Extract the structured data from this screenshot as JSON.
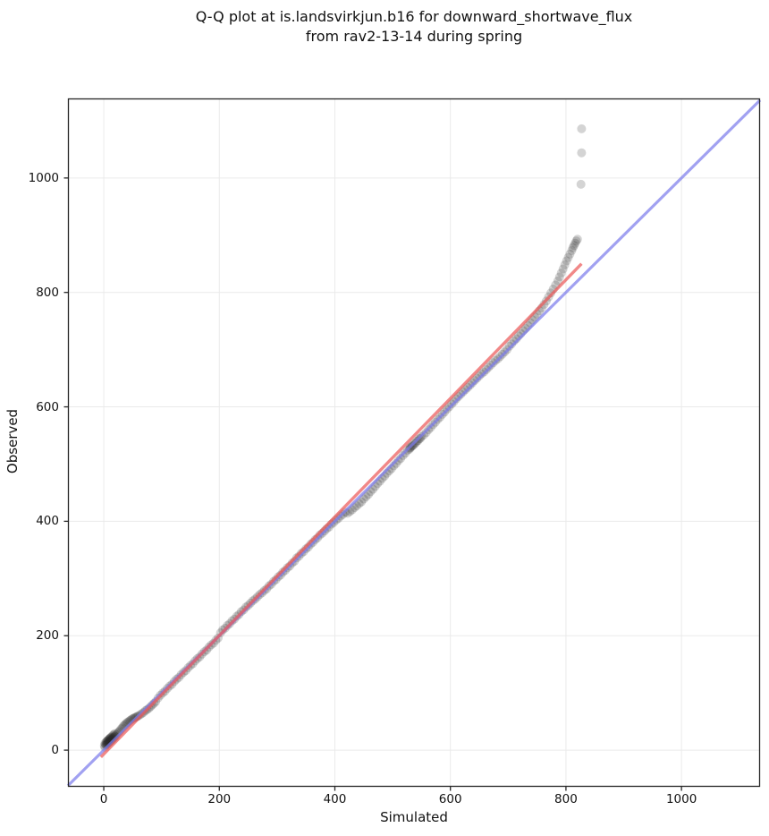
{
  "title": {
    "line1": "Q-Q plot at is.landsvirkjun.b16 for downward_shortwave_flux",
    "line2": "from rav2-13-14 during spring"
  },
  "chart_data": {
    "type": "scatter",
    "title": "Q-Q plot at is.landsvirkjun.b16 for downward_shortwave_flux from rav2-13-14 during spring",
    "xlabel": "Simulated",
    "ylabel": "Observed",
    "xlim": [
      -62,
      1136
    ],
    "ylim": [
      -64,
      1139
    ],
    "xticks": [
      0,
      200,
      400,
      600,
      800,
      1000
    ],
    "yticks": [
      0,
      200,
      400,
      600,
      800,
      1000
    ],
    "grid": true,
    "legend": "none",
    "colors": {
      "grid": "#eaeaea",
      "spine": "#262626",
      "identity_line": "rgba(125,125,235,0.72)",
      "fit_line": "rgba(235,90,90,0.72)",
      "point_fill": "#262626"
    },
    "identity_line": {
      "x": [
        -62,
        1136
      ],
      "y": [
        -62,
        1136
      ]
    },
    "fit_line": {
      "x": [
        -5,
        827
      ],
      "y": [
        -12,
        850
      ]
    },
    "points_style": {
      "radius": 5,
      "opacity": 0.2
    },
    "points": [
      [
        1,
        8
      ],
      [
        2,
        5
      ],
      [
        2,
        12
      ],
      [
        3,
        10
      ],
      [
        4,
        9
      ],
      [
        4,
        14
      ],
      [
        5,
        11
      ],
      [
        5,
        15
      ],
      [
        6,
        10
      ],
      [
        6,
        16
      ],
      [
        7,
        13
      ],
      [
        7,
        17
      ],
      [
        8,
        12
      ],
      [
        8,
        18
      ],
      [
        9,
        15
      ],
      [
        9,
        19
      ],
      [
        10,
        14
      ],
      [
        10,
        20
      ],
      [
        11,
        17
      ],
      [
        11,
        21
      ],
      [
        12,
        16
      ],
      [
        12,
        22
      ],
      [
        13,
        19
      ],
      [
        13,
        23
      ],
      [
        14,
        18
      ],
      [
        15,
        21
      ],
      [
        15,
        25
      ],
      [
        16,
        20
      ],
      [
        17,
        23
      ],
      [
        17,
        27
      ],
      [
        18,
        22
      ],
      [
        19,
        25
      ],
      [
        19,
        29
      ],
      [
        20,
        24
      ],
      [
        22,
        27
      ],
      [
        24,
        30
      ],
      [
        26,
        32
      ],
      [
        28,
        34
      ],
      [
        30,
        37
      ],
      [
        32,
        39
      ],
      [
        34,
        42
      ],
      [
        36,
        44
      ],
      [
        38,
        46
      ],
      [
        40,
        48
      ],
      [
        42,
        49
      ],
      [
        44,
        51
      ],
      [
        46,
        52
      ],
      [
        48,
        54
      ],
      [
        50,
        55
      ],
      [
        52,
        56
      ],
      [
        54,
        57
      ],
      [
        56,
        58
      ],
      [
        58,
        59
      ],
      [
        60,
        60
      ],
      [
        63,
        62
      ],
      [
        66,
        64
      ],
      [
        69,
        66
      ],
      [
        72,
        69
      ],
      [
        75,
        71
      ],
      [
        78,
        73
      ],
      [
        81,
        76
      ],
      [
        84,
        79
      ],
      [
        87,
        82
      ],
      [
        90,
        85
      ],
      [
        94,
        91
      ],
      [
        98,
        96
      ],
      [
        102,
        100
      ],
      [
        106,
        103
      ],
      [
        110,
        108
      ],
      [
        114,
        112
      ],
      [
        118,
        115
      ],
      [
        122,
        120
      ],
      [
        126,
        124
      ],
      [
        130,
        127
      ],
      [
        134,
        132
      ],
      [
        138,
        136
      ],
      [
        142,
        139
      ],
      [
        146,
        144
      ],
      [
        150,
        148
      ],
      [
        154,
        151
      ],
      [
        158,
        156
      ],
      [
        162,
        160
      ],
      [
        166,
        163
      ],
      [
        170,
        168
      ],
      [
        174,
        172
      ],
      [
        178,
        175
      ],
      [
        182,
        180
      ],
      [
        186,
        184
      ],
      [
        190,
        187
      ],
      [
        194,
        192
      ],
      [
        198,
        196
      ],
      [
        202,
        205
      ],
      [
        206,
        210
      ],
      [
        210,
        213
      ],
      [
        214,
        218
      ],
      [
        218,
        221
      ],
      [
        222,
        226
      ],
      [
        226,
        229
      ],
      [
        230,
        234
      ],
      [
        234,
        237
      ],
      [
        238,
        242
      ],
      [
        242,
        245
      ],
      [
        246,
        250
      ],
      [
        250,
        253
      ],
      [
        254,
        257
      ],
      [
        258,
        261
      ],
      [
        262,
        264
      ],
      [
        266,
        268
      ],
      [
        270,
        272
      ],
      [
        274,
        275
      ],
      [
        278,
        279
      ],
      [
        282,
        282
      ],
      [
        286,
        287
      ],
      [
        290,
        290
      ],
      [
        294,
        295
      ],
      [
        298,
        298
      ],
      [
        302,
        303
      ],
      [
        306,
        306
      ],
      [
        310,
        311
      ],
      [
        314,
        314
      ],
      [
        318,
        319
      ],
      [
        322,
        322
      ],
      [
        326,
        327
      ],
      [
        330,
        330
      ],
      [
        334,
        336
      ],
      [
        338,
        339
      ],
      [
        342,
        344
      ],
      [
        346,
        347
      ],
      [
        350,
        352
      ],
      [
        354,
        355
      ],
      [
        358,
        360
      ],
      [
        362,
        363
      ],
      [
        366,
        368
      ],
      [
        370,
        371
      ],
      [
        374,
        376
      ],
      [
        378,
        379
      ],
      [
        382,
        383
      ],
      [
        386,
        387
      ],
      [
        390,
        390
      ],
      [
        394,
        395
      ],
      [
        398,
        398
      ],
      [
        402,
        402
      ],
      [
        406,
        405
      ],
      [
        410,
        409
      ],
      [
        414,
        412
      ],
      [
        418,
        416
      ],
      [
        422,
        414
      ],
      [
        426,
        417
      ],
      [
        430,
        420
      ],
      [
        434,
        424
      ],
      [
        438,
        427
      ],
      [
        442,
        431
      ],
      [
        446,
        434
      ],
      [
        450,
        439
      ],
      [
        454,
        443
      ],
      [
        458,
        447
      ],
      [
        462,
        452
      ],
      [
        466,
        456
      ],
      [
        470,
        461
      ],
      [
        474,
        466
      ],
      [
        478,
        470
      ],
      [
        482,
        475
      ],
      [
        486,
        479
      ],
      [
        490,
        484
      ],
      [
        494,
        488
      ],
      [
        498,
        492
      ],
      [
        502,
        497
      ],
      [
        506,
        501
      ],
      [
        510,
        506
      ],
      [
        514,
        510
      ],
      [
        518,
        515
      ],
      [
        522,
        519
      ],
      [
        526,
        524
      ],
      [
        529,
        526
      ],
      [
        530,
        528
      ],
      [
        531,
        529
      ],
      [
        533,
        531
      ],
      [
        534,
        532
      ],
      [
        536,
        533
      ],
      [
        538,
        536
      ],
      [
        540,
        537
      ],
      [
        542,
        540
      ],
      [
        544,
        541
      ],
      [
        546,
        544
      ],
      [
        548,
        545
      ],
      [
        550,
        548
      ],
      [
        554,
        551
      ],
      [
        558,
        555
      ],
      [
        562,
        560
      ],
      [
        566,
        564
      ],
      [
        570,
        569
      ],
      [
        574,
        573
      ],
      [
        578,
        578
      ],
      [
        582,
        582
      ],
      [
        586,
        587
      ],
      [
        590,
        591
      ],
      [
        594,
        596
      ],
      [
        598,
        600
      ],
      [
        602,
        605
      ],
      [
        606,
        609
      ],
      [
        610,
        614
      ],
      [
        614,
        618
      ],
      [
        618,
        622
      ],
      [
        622,
        626
      ],
      [
        626,
        630
      ],
      [
        630,
        634
      ],
      [
        634,
        638
      ],
      [
        638,
        642
      ],
      [
        642,
        646
      ],
      [
        646,
        650
      ],
      [
        650,
        654
      ],
      [
        654,
        658
      ],
      [
        658,
        661
      ],
      [
        662,
        665
      ],
      [
        666,
        669
      ],
      [
        670,
        673
      ],
      [
        674,
        677
      ],
      [
        678,
        681
      ],
      [
        682,
        684
      ],
      [
        686,
        688
      ],
      [
        690,
        692
      ],
      [
        694,
        696
      ],
      [
        698,
        700
      ],
      [
        702,
        706
      ],
      [
        706,
        710
      ],
      [
        710,
        715
      ],
      [
        714,
        719
      ],
      [
        718,
        724
      ],
      [
        722,
        728
      ],
      [
        726,
        733
      ],
      [
        730,
        737
      ],
      [
        734,
        742
      ],
      [
        738,
        747
      ],
      [
        742,
        752
      ],
      [
        746,
        757
      ],
      [
        750,
        762
      ],
      [
        754,
        768
      ],
      [
        758,
        773
      ],
      [
        762,
        779
      ],
      [
        766,
        785
      ],
      [
        770,
        792
      ],
      [
        774,
        799
      ],
      [
        778,
        806
      ],
      [
        782,
        813
      ],
      [
        786,
        820
      ],
      [
        789,
        827
      ],
      [
        792,
        834
      ],
      [
        795,
        841
      ],
      [
        798,
        848
      ],
      [
        801,
        855
      ],
      [
        804,
        861
      ],
      [
        807,
        867
      ],
      [
        810,
        873
      ],
      [
        812,
        878
      ],
      [
        814,
        882
      ],
      [
        816,
        886
      ],
      [
        818,
        890
      ],
      [
        820,
        893
      ],
      [
        826,
        989
      ],
      [
        827,
        1044
      ],
      [
        827,
        1086
      ]
    ]
  }
}
